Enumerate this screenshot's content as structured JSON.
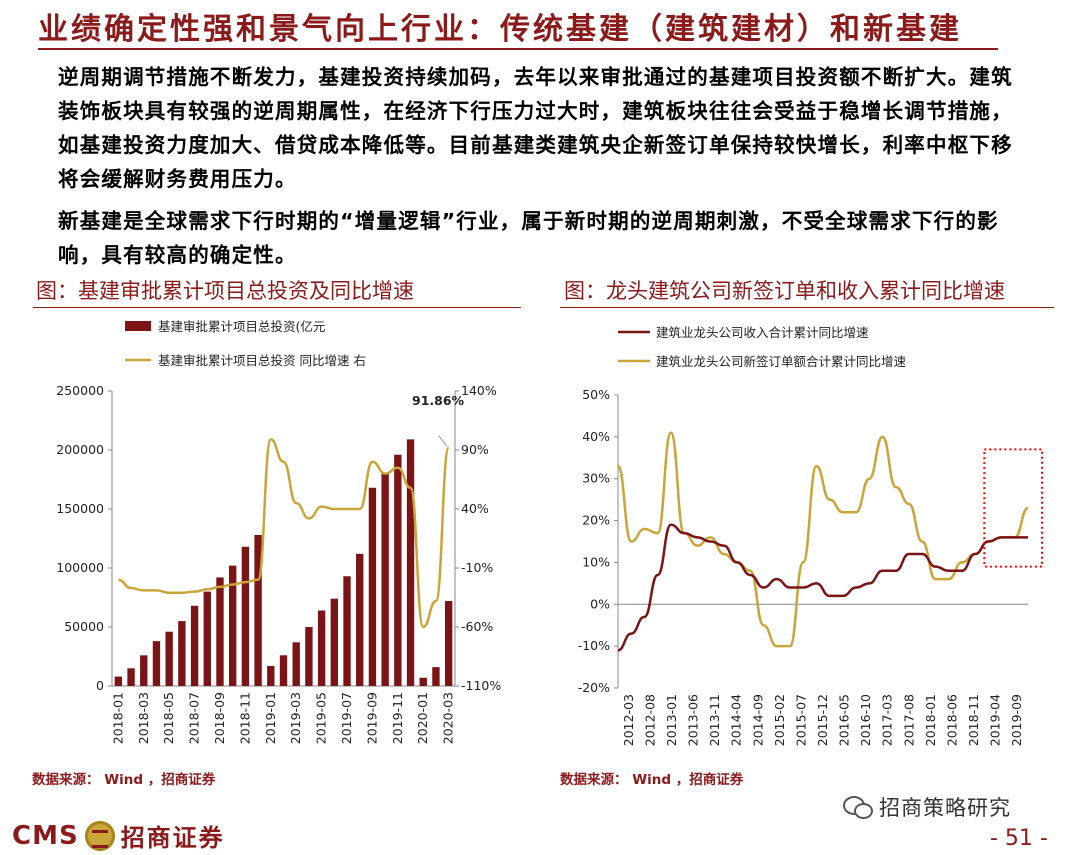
{
  "header": {
    "title": "业绩确定性强和景气向上行业：传统基建（建筑建材）和新基建"
  },
  "body": {
    "paragraph1": "逆周期调节措施不断发力，基建投资持续加码，去年以来审批通过的基建项目投资额不断扩大。建筑装饰板块具有较强的逆周期属性，在经济下行压力过大时，建筑板块往往会受益于稳增长调节措施，如基建投资力度加大、借贷成本降低等。目前基建类建筑央企新签订单保持较快增长，利率中枢下移将会缓解财务费用压力。",
    "paragraph2": "新基建是全球需求下行时期的“增量逻辑”行业，属于新时期的逆周期刺激，不受全球需求下行的影响，具有较高的确定性。"
  },
  "footer": {
    "brand_en": "CMS",
    "brand_cn": "招商证券",
    "wechat_account": "招商策略研究",
    "page_number": "- 51 -"
  },
  "colors": {
    "dark_red": "#7b1416",
    "gold": "#c9a53a",
    "bar": "#7b1416",
    "highlight_red": "#ff0000"
  },
  "chart_data": [
    {
      "type": "bar",
      "title": "图：基建审批累计项目总投资及同比增速",
      "source": "数据来源： Wind ，招商证券",
      "categories": [
        "2018-01",
        "2018-02",
        "2018-03",
        "2018-04",
        "2018-05",
        "2018-06",
        "2018-07",
        "2018-08",
        "2018-09",
        "2018-10",
        "2018-11",
        "2018-12",
        "2019-01",
        "2019-02",
        "2019-03",
        "2019-04",
        "2019-05",
        "2019-06",
        "2019-07",
        "2019-08",
        "2019-09",
        "2019-10",
        "2019-11",
        "2019-12",
        "2020-01",
        "2020-02",
        "2020-03"
      ],
      "tick_labels": [
        "2018-01",
        "2018-03",
        "2018-05",
        "2018-07",
        "2018-09",
        "2018-11",
        "2019-01",
        "2019-03",
        "2019-05",
        "2019-07",
        "2019-09",
        "2019-11",
        "2020-01",
        "2020-03"
      ],
      "series": [
        {
          "name": "基建审批累计项目总投资(亿元",
          "kind": "bar",
          "axis": "left",
          "values": [
            8000,
            15000,
            26000,
            38000,
            46000,
            55000,
            68000,
            80000,
            92000,
            102000,
            118000,
            128000,
            17000,
            26000,
            37000,
            50000,
            64000,
            74000,
            93000,
            112000,
            168000,
            180000,
            196000,
            209000,
            7000,
            16000,
            72000
          ]
        },
        {
          "name": "基建审批累计项目总投资 同比增速 右",
          "kind": "line",
          "axis": "right",
          "values": [
            -20,
            -27,
            -29,
            -29,
            -31,
            -31,
            -30,
            -28,
            -26,
            -24,
            -22,
            -20,
            99,
            80,
            45,
            32,
            42,
            40,
            40,
            40,
            80,
            70,
            75,
            58,
            -60,
            -38,
            91.86
          ]
        }
      ],
      "annotation": "91.86%",
      "left_axis": {
        "min": 0,
        "max": 250000,
        "ticks": [
          "0",
          "50000",
          "100000",
          "150000",
          "200000",
          "250000"
        ]
      },
      "right_axis": {
        "min": -110,
        "max": 140,
        "ticks": [
          "-110%",
          "-60%",
          "-10%",
          "40%",
          "90%",
          "140%"
        ]
      }
    },
    {
      "type": "line",
      "title": "图：龙头建筑公司新签订单和收入累计同比增速",
      "source": "数据来源： Wind ，招商证券",
      "x": [
        "2012-03",
        "2012-06",
        "2012-09",
        "2012-12",
        "2013-03",
        "2013-06",
        "2013-09",
        "2013-12",
        "2014-03",
        "2014-06",
        "2014-09",
        "2014-12",
        "2015-03",
        "2015-06",
        "2015-09",
        "2015-12",
        "2016-03",
        "2016-06",
        "2016-09",
        "2016-12",
        "2017-03",
        "2017-06",
        "2017-09",
        "2017-12",
        "2018-03",
        "2018-06",
        "2018-09",
        "2018-12",
        "2019-03",
        "2019-06",
        "2019-09",
        "2019-12"
      ],
      "tick_labels": [
        "2012-03",
        "2012-08",
        "2013-01",
        "2013-06",
        "2013-11",
        "2014-04",
        "2014-09",
        "2015-02",
        "2015-07",
        "2015-12",
        "2016-05",
        "2016-10",
        "2017-03",
        "2017-08",
        "2018-01",
        "2018-06",
        "2018-11",
        "2019-04",
        "2019-09"
      ],
      "series": [
        {
          "name": "建筑业龙头公司收入合计累计同比增速",
          "values": [
            -11,
            -7,
            -3,
            7,
            19,
            17,
            16,
            15,
            14,
            10,
            7,
            4,
            6,
            4,
            4,
            5,
            2,
            2,
            4,
            5,
            8,
            8,
            12,
            12,
            9,
            8,
            8,
            12,
            15,
            16,
            16,
            16
          ]
        },
        {
          "name": "建筑业龙头公司新签订单额合计累计同比增速",
          "values": [
            33,
            15,
            18,
            17,
            41,
            17,
            14,
            16,
            12,
            10,
            8,
            -5,
            -10,
            -10,
            10,
            33,
            25,
            22,
            22,
            30,
            40,
            28,
            24,
            15,
            6,
            6,
            10,
            12,
            15,
            16,
            16,
            23
          ]
        }
      ],
      "y_axis": {
        "min": -20,
        "max": 50,
        "ticks": [
          "-20%",
          "-10%",
          "0%",
          "10%",
          "20%",
          "30%",
          "40%",
          "50%"
        ]
      }
    }
  ]
}
